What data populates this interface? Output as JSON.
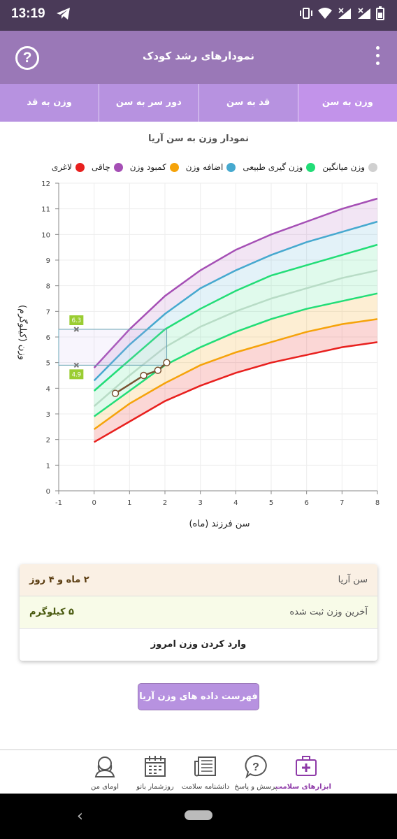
{
  "status_bar": {
    "time": "13:19"
  },
  "app_bar": {
    "title": "نمودارهای رشد کودک",
    "help_glyph": "?"
  },
  "tabs": [
    {
      "label": "وزن به سن",
      "active": true
    },
    {
      "label": "قد به سن",
      "active": false
    },
    {
      "label": "دور سر به سن",
      "active": false
    },
    {
      "label": "وزن به قد",
      "active": false
    }
  ],
  "chart": {
    "title": "نمودار وزن به سن آریا",
    "xlabel": "سن فرزند (ماه)",
    "ylabel": "وزن (کیلوگرم)"
  },
  "legend": [
    {
      "label": "لاغری",
      "color": "#e8201e"
    },
    {
      "label": "چاقی",
      "color": "#a54fb5"
    },
    {
      "label": "کمبود وزن",
      "color": "#f5a30a"
    },
    {
      "label": "اضافه وزن",
      "color": "#46a9cf"
    },
    {
      "label": "وزن گیری طبیعی",
      "color": "#22dd77"
    },
    {
      "label": "وزن میانگین",
      "color": "#d0d0d0"
    }
  ],
  "chart_data": {
    "type": "line",
    "xlim": [
      -1,
      8
    ],
    "ylim": [
      0,
      12
    ],
    "x_ticks": [
      "-1",
      "0",
      "1",
      "2",
      "3",
      "4",
      "5",
      "6",
      "7",
      "8"
    ],
    "y_ticks": [
      "0",
      "1",
      "2",
      "3",
      "4",
      "5",
      "6",
      "7",
      "8",
      "9",
      "10",
      "11",
      "12"
    ],
    "x": [
      0,
      1,
      2,
      3,
      4,
      5,
      6,
      7,
      8
    ],
    "series": [
      {
        "name": "چاقی",
        "color": "#a54fb5",
        "values": [
          4.8,
          6.3,
          7.6,
          8.6,
          9.4,
          10.0,
          10.5,
          11.0,
          11.4
        ]
      },
      {
        "name": "اضافه وزن",
        "color": "#46a9cf",
        "values": [
          4.3,
          5.7,
          6.9,
          7.9,
          8.6,
          9.2,
          9.7,
          10.1,
          10.5
        ]
      },
      {
        "name": "وزن گیری طبیعی",
        "color": "#22dd77",
        "values": [
          3.9,
          5.1,
          6.3,
          7.1,
          7.8,
          8.4,
          8.8,
          9.2,
          9.6
        ]
      },
      {
        "name": "وزن میانگین",
        "color": "#b8dcc6",
        "values": [
          3.3,
          4.5,
          5.6,
          6.4,
          7.0,
          7.5,
          7.9,
          8.3,
          8.6
        ]
      },
      {
        "name": "وزن گیری طبیعی",
        "color": "#22dd77",
        "values": [
          2.9,
          3.9,
          4.9,
          5.6,
          6.2,
          6.7,
          7.1,
          7.4,
          7.7
        ]
      },
      {
        "name": "کمبود وزن",
        "color": "#f5a30a",
        "values": [
          2.4,
          3.4,
          4.2,
          4.9,
          5.4,
          5.8,
          6.2,
          6.5,
          6.7
        ]
      },
      {
        "name": "لاغری",
        "color": "#e8201e",
        "values": [
          1.9,
          2.7,
          3.5,
          4.1,
          4.6,
          5.0,
          5.3,
          5.6,
          5.8
        ]
      }
    ],
    "child": {
      "x": [
        0.6,
        1.4,
        1.8,
        2.05
      ],
      "y": [
        3.8,
        4.5,
        4.7,
        5.0
      ]
    },
    "range_markers": {
      "x": -0.5,
      "low": 4.9,
      "high": 6.3,
      "box_x_end": 2.05
    },
    "range_labels": [
      "6.3",
      "4.9"
    ]
  },
  "info": {
    "name_label": "سن آریا",
    "age_value": "۲ ماه و ۴ روز",
    "weight_label": "آخرین وزن ثبت شده",
    "weight_value": "۵ کیلوگرم",
    "action_label": "وارد کردن وزن امروز"
  },
  "list_button": "فهرست داده های وزن آریا",
  "bottom_nav": [
    {
      "label": "ابزارهای سلامت",
      "icon": "medical-kit-icon",
      "active": true
    },
    {
      "label": "پرسش و پاسخ",
      "icon": "question-bubble-icon",
      "active": false
    },
    {
      "label": "دانشنامه سلامت",
      "icon": "newspaper-icon",
      "active": false
    },
    {
      "label": "روزشمار بانو",
      "icon": "calendar-icon",
      "active": false
    },
    {
      "label": "اومای من",
      "icon": "profile-woman-icon",
      "active": false
    }
  ]
}
